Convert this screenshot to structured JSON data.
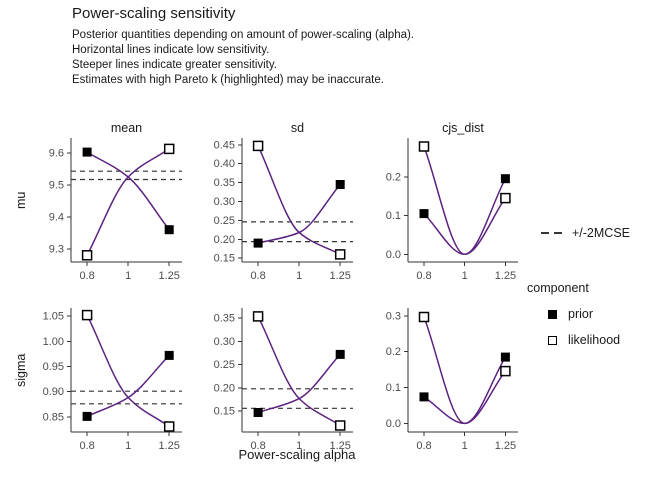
{
  "header": {
    "title": "Power-scaling sensitivity",
    "subtitle_lines": [
      "Posterior quantities depending on amount of power-scaling (alpha).",
      "Horizontal lines indicate low sensitivity.",
      "Steeper lines indicate greater sensitivity.",
      "Estimates with high Pareto k (highlighted) may be inaccurate."
    ]
  },
  "legend": {
    "mcse_label": "+/-2MCSE",
    "component_title": "component",
    "items": [
      {
        "label": "prior",
        "marker": "filled-square"
      },
      {
        "label": "likelihood",
        "marker": "open-square"
      }
    ]
  },
  "colors": {
    "curve": "#5c2180",
    "dashed": "#333333",
    "axis": "#333333",
    "tick_text": "#4d4d4d",
    "text": "#1a1a1a"
  },
  "chart_data": {
    "type": "line",
    "x": [
      0.8,
      1,
      1.25
    ],
    "x_tick_labels": [
      "0.8",
      "1",
      "1.25"
    ],
    "x_scale": "log",
    "xlabel": "Power-scaling alpha",
    "col_titles": [
      "mean",
      "sd",
      "cjs_dist"
    ],
    "row_titles": [
      "mu",
      "sigma"
    ],
    "series_names": [
      "prior",
      "likelihood"
    ],
    "legend_position": "right",
    "grid": false,
    "facets": [
      {
        "row": "mu",
        "col": "mean",
        "ylim": [
          9.259,
          9.647
        ],
        "yticks": [
          9.6,
          9.5,
          9.4,
          9.3
        ],
        "ytick_labels": [
          "9.6",
          "9.5",
          "9.4",
          "9.3"
        ],
        "mcse": [
          9.517,
          9.543
        ],
        "prior": [
          9.603,
          9.525,
          9.36
        ],
        "likelihood": [
          9.28,
          9.525,
          9.613
        ]
      },
      {
        "row": "mu",
        "col": "sd",
        "ylim": [
          0.14,
          0.468
        ],
        "yticks": [
          0.45,
          0.4,
          0.35,
          0.3,
          0.25,
          0.2,
          0.15
        ],
        "ytick_labels": [
          "0.45",
          "0.40",
          "0.35",
          "0.30",
          "0.25",
          "0.20",
          "0.15"
        ],
        "mcse": [
          0.194,
          0.246
        ],
        "prior": [
          0.19,
          0.218,
          0.345
        ],
        "likelihood": [
          0.447,
          0.218,
          0.16
        ]
      },
      {
        "row": "mu",
        "col": "cjs_dist",
        "ylim": [
          -0.02,
          0.3
        ],
        "yticks": [
          0.2,
          0.1,
          0.0
        ],
        "ytick_labels": [
          "0.2",
          "0.1",
          "0.0"
        ],
        "mcse": null,
        "prior": [
          0.105,
          0.0,
          0.195
        ],
        "likelihood": [
          0.278,
          0.0,
          0.145
        ]
      },
      {
        "row": "sigma",
        "col": "mean",
        "ylim": [
          0.82,
          1.066
        ],
        "yticks": [
          1.05,
          1.0,
          0.95,
          0.9,
          0.85
        ],
        "ytick_labels": [
          "1.05",
          "1.00",
          "0.95",
          "0.90",
          "0.85"
        ],
        "mcse": [
          0.876,
          0.901
        ],
        "prior": [
          0.851,
          0.8885,
          0.972
        ],
        "likelihood": [
          1.052,
          0.8885,
          0.831
        ]
      },
      {
        "row": "sigma",
        "col": "sd",
        "ylim": [
          0.105,
          0.372
        ],
        "yticks": [
          0.35,
          0.3,
          0.25,
          0.2,
          0.15
        ],
        "ytick_labels": [
          "0.35",
          "0.30",
          "0.25",
          "0.20",
          "0.15"
        ],
        "mcse": [
          0.156,
          0.198
        ],
        "prior": [
          0.147,
          0.177,
          0.272
        ],
        "likelihood": [
          0.354,
          0.177,
          0.119
        ]
      },
      {
        "row": "sigma",
        "col": "cjs_dist",
        "ylim": [
          -0.024,
          0.322
        ],
        "yticks": [
          0.3,
          0.2,
          0.1,
          0.0
        ],
        "ytick_labels": [
          "0.3",
          "0.2",
          "0.1",
          "0.0"
        ],
        "mcse": null,
        "prior": [
          0.074,
          0.0,
          0.185
        ],
        "likelihood": [
          0.297,
          0.0,
          0.146
        ]
      }
    ]
  }
}
